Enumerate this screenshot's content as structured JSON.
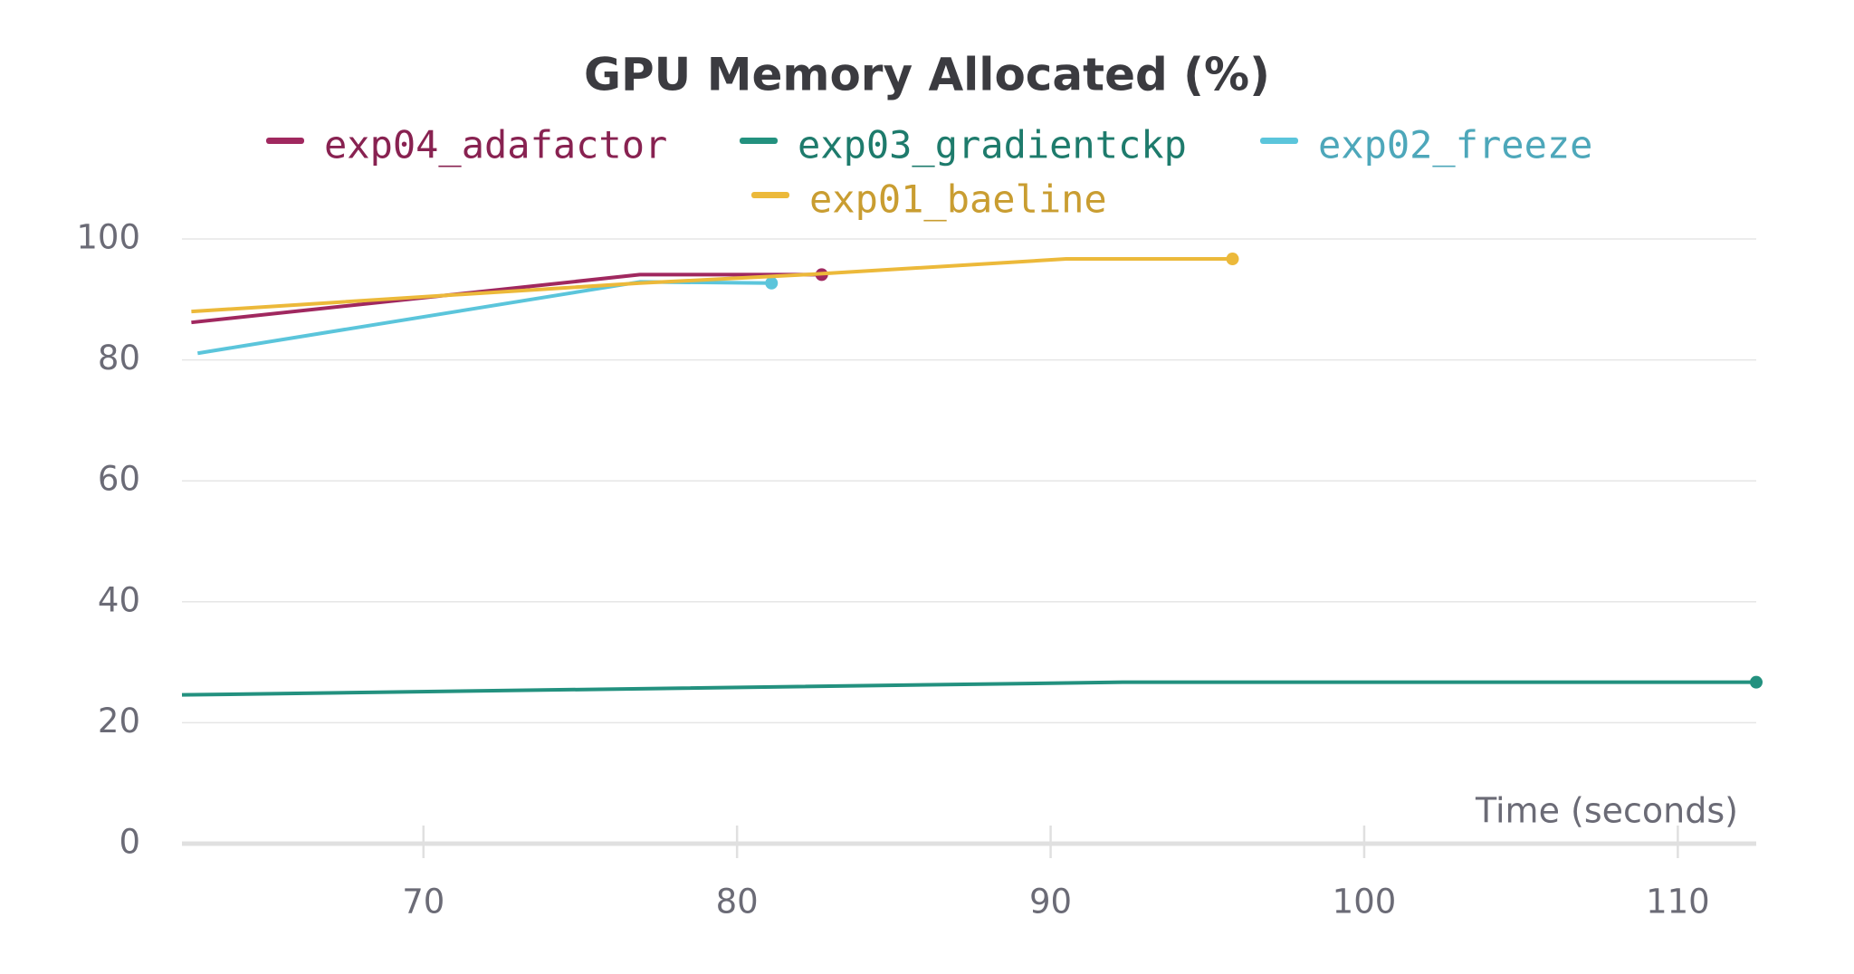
{
  "chart_data": {
    "type": "line",
    "title": "GPU Memory Allocated (%)",
    "x_label": "Time (seconds)",
    "series": [
      {
        "name": "exp04_adafactor",
        "color": "#a0285f",
        "x": [
          62.6,
          76.9,
          82.7
        ],
        "values": [
          86.2,
          94.1,
          94.1
        ]
      },
      {
        "name": "exp03_gradientckp",
        "color": "#23917f",
        "x": [
          62.3,
          92.3,
          112.5
        ],
        "values": [
          24.6,
          26.7,
          26.7
        ]
      },
      {
        "name": "exp02_freeze",
        "color": "#5bc5db",
        "x": [
          62.8,
          76.9,
          81.1
        ],
        "values": [
          81.1,
          92.9,
          92.7
        ]
      },
      {
        "name": "exp01_baeline",
        "color": "#ecb93a",
        "x": [
          62.6,
          76.9,
          82.2,
          90.5,
          95.8
        ],
        "values": [
          88.0,
          92.7,
          94.1,
          96.7,
          96.7
        ]
      }
    ],
    "xlim": [
      62.3,
      112.5
    ],
    "xticks": [
      70,
      80,
      90,
      100,
      110
    ],
    "ylim": [
      0,
      100
    ],
    "yticks": [
      0,
      20,
      40,
      60,
      80,
      100
    ],
    "grid": true
  }
}
